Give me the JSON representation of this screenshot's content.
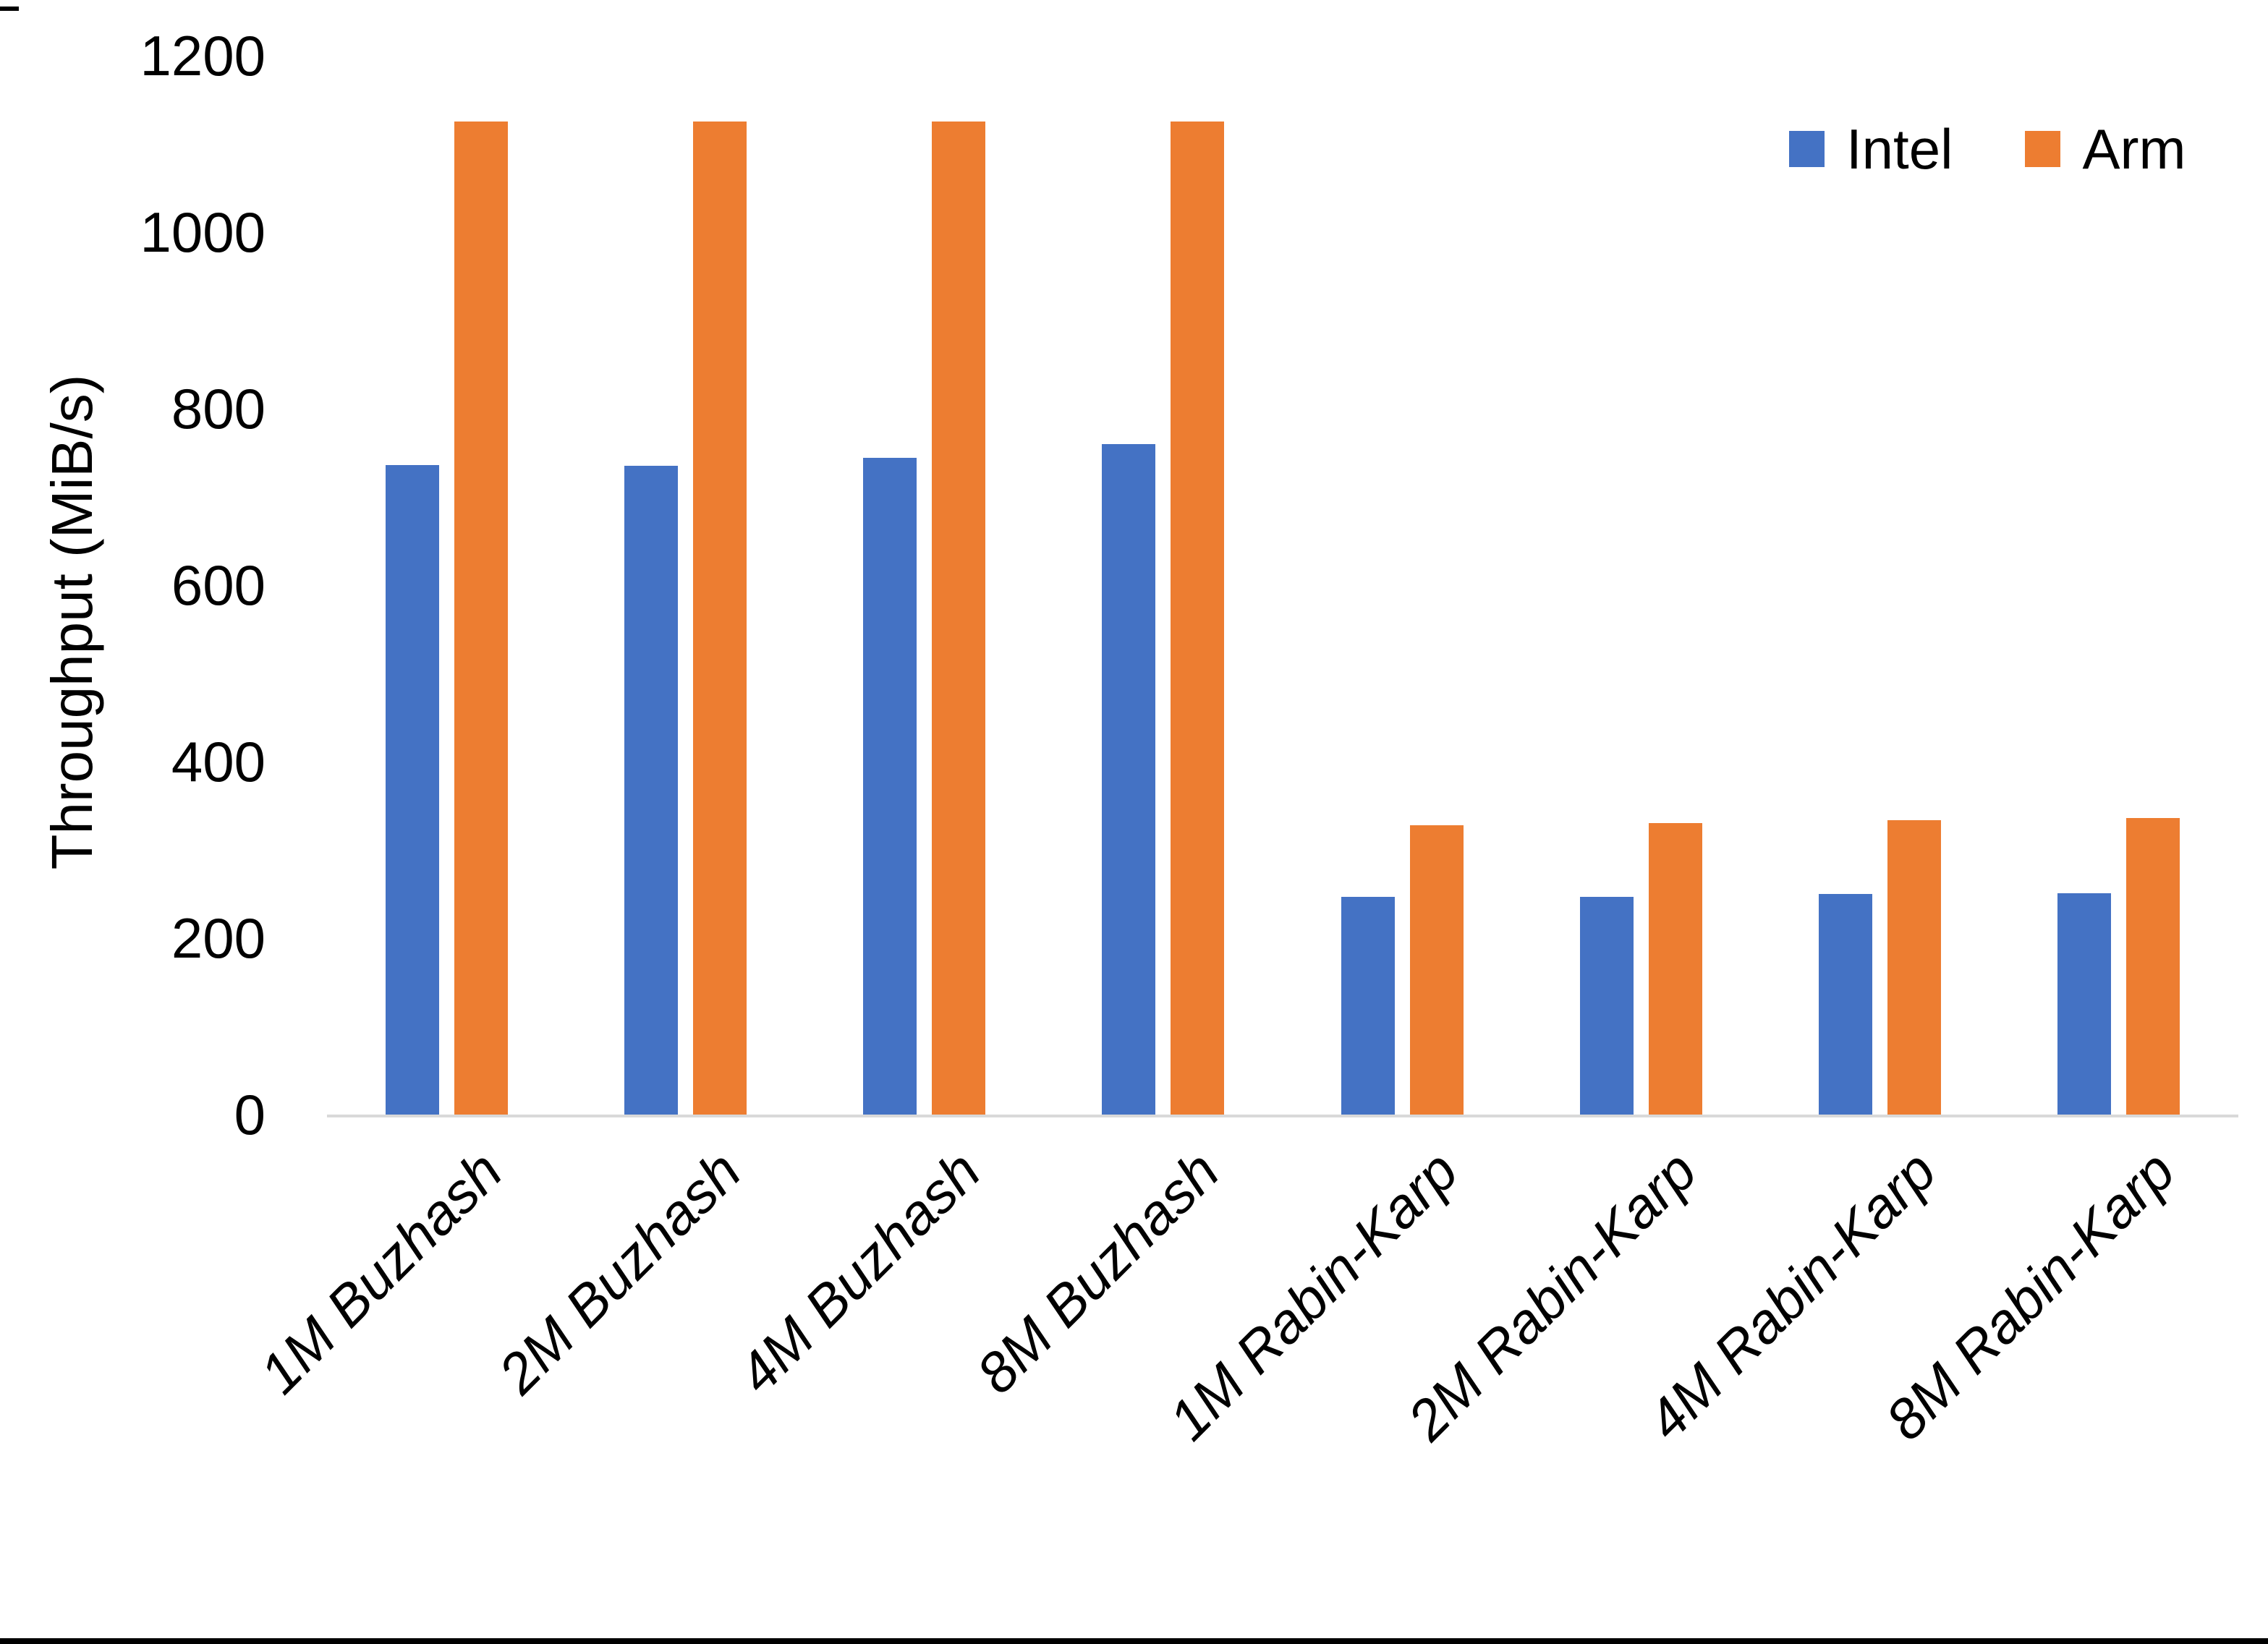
{
  "chart_data": {
    "type": "bar",
    "title": "",
    "ylabel": "Throughput (MiB/s)",
    "xlabel": "",
    "ylim": [
      0,
      1200
    ],
    "yticks": [
      0,
      200,
      400,
      600,
      800,
      1000,
      1200
    ],
    "grid": "baseline only (light gray x-axis line, no other gridlines)",
    "legend_position": "top-right",
    "categories": [
      "1M Buzhash",
      "2M Buzhash",
      "4M Buzhash",
      "8M Buzhash",
      "1M Rabin-Karp",
      "2M Rabin-Karp",
      "4M Rabin-Karp",
      "8M Rabin-Karp"
    ],
    "series": [
      {
        "name": "Intel",
        "color": "#4472C4",
        "values": [
          736,
          735,
          744,
          760,
          247,
          247,
          250,
          251
        ]
      },
      {
        "name": "Arm",
        "color": "#ED7D31",
        "values": [
          1125,
          1125,
          1125,
          1125,
          328,
          330,
          334,
          336
        ]
      }
    ]
  },
  "colors": {
    "intel": "#4472C4",
    "arm": "#ED7D31",
    "baseline_gridline": "#D9D9D9",
    "text": "#000000",
    "background": "#FFFFFF",
    "bottom_edge_bar": "#000000"
  }
}
